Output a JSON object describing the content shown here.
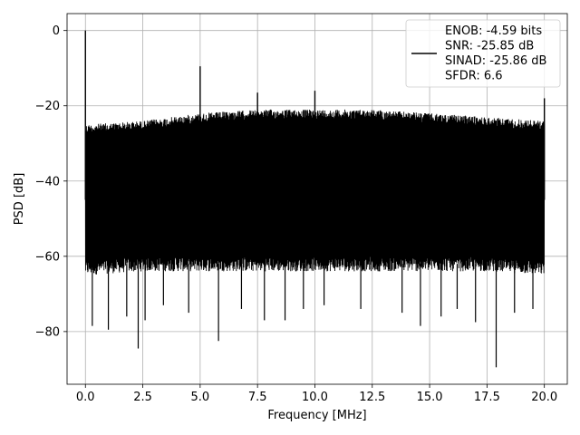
{
  "chart_data": {
    "type": "line",
    "title": "",
    "xlabel": "Frequency [MHz]",
    "ylabel": "PSD [dB]",
    "xlim": [
      -0.8,
      21.0
    ],
    "ylim": [
      -94,
      4.5
    ],
    "xticks": [
      0.0,
      2.5,
      5.0,
      7.5,
      10.0,
      12.5,
      15.0,
      17.5,
      20.0
    ],
    "xtick_labels": [
      "0.0",
      "2.5",
      "5.0",
      "7.5",
      "10.0",
      "12.5",
      "15.0",
      "17.5",
      "20.0"
    ],
    "yticks": [
      0,
      -20,
      -40,
      -60,
      -80
    ],
    "ytick_labels": [
      "0",
      "−20",
      "−40",
      "−60",
      "−80"
    ],
    "grid": true,
    "legend_position": "top-right",
    "series": [
      {
        "color": "#000000",
        "noise_band": {
          "x_range": [
            0.0,
            20.0
          ],
          "upper_envelope": [
            {
              "x": 0.0,
              "y": -25
            },
            {
              "x": 2.5,
              "y": -24
            },
            {
              "x": 5.0,
              "y": -22
            },
            {
              "x": 7.5,
              "y": -21
            },
            {
              "x": 10.0,
              "y": -21
            },
            {
              "x": 12.5,
              "y": -21
            },
            {
              "x": 15.0,
              "y": -22
            },
            {
              "x": 17.5,
              "y": -23
            },
            {
              "x": 20.0,
              "y": -24
            }
          ],
          "lower_envelope": [
            {
              "x": 0.0,
              "y": -65
            },
            {
              "x": 2.5,
              "y": -64
            },
            {
              "x": 5.0,
              "y": -64
            },
            {
              "x": 7.5,
              "y": -64
            },
            {
              "x": 10.0,
              "y": -64
            },
            {
              "x": 12.5,
              "y": -64
            },
            {
              "x": 15.0,
              "y": -64
            },
            {
              "x": 17.5,
              "y": -64
            },
            {
              "x": 20.0,
              "y": -65
            }
          ]
        },
        "peaks": [
          {
            "x": 0.0,
            "y": 0.0
          },
          {
            "x": 5.0,
            "y": -9.5
          },
          {
            "x": 7.5,
            "y": -16.5
          },
          {
            "x": 10.0,
            "y": -16.0
          },
          {
            "x": 20.0,
            "y": -18.0
          }
        ],
        "dips": [
          {
            "x": 0.3,
            "y": -78.5
          },
          {
            "x": 1.0,
            "y": -79.5
          },
          {
            "x": 1.8,
            "y": -76.0
          },
          {
            "x": 2.3,
            "y": -84.5
          },
          {
            "x": 2.6,
            "y": -77.0
          },
          {
            "x": 3.4,
            "y": -73.0
          },
          {
            "x": 4.5,
            "y": -75.0
          },
          {
            "x": 5.8,
            "y": -82.5
          },
          {
            "x": 6.8,
            "y": -74.0
          },
          {
            "x": 7.8,
            "y": -77.0
          },
          {
            "x": 8.7,
            "y": -77.0
          },
          {
            "x": 9.5,
            "y": -74.0
          },
          {
            "x": 10.4,
            "y": -73.0
          },
          {
            "x": 12.0,
            "y": -74.0
          },
          {
            "x": 13.8,
            "y": -75.0
          },
          {
            "x": 14.6,
            "y": -78.5
          },
          {
            "x": 15.5,
            "y": -76.0
          },
          {
            "x": 16.2,
            "y": -74.0
          },
          {
            "x": 17.0,
            "y": -77.5
          },
          {
            "x": 17.9,
            "y": -89.5
          },
          {
            "x": 18.7,
            "y": -75.0
          },
          {
            "x": 19.5,
            "y": -74.0
          }
        ]
      }
    ],
    "legend": {
      "entries": [
        {
          "label": "ENOB: -4.59 bits\nSNR: -25.85 dB\nSINAD: -25.86 dB\nSFDR: 6.6",
          "color": "#000000"
        }
      ],
      "lines": [
        "ENOB: -4.59 bits",
        "SNR: -25.85 dB",
        "SINAD: -25.86 dB",
        "SFDR: 6.6"
      ]
    }
  }
}
